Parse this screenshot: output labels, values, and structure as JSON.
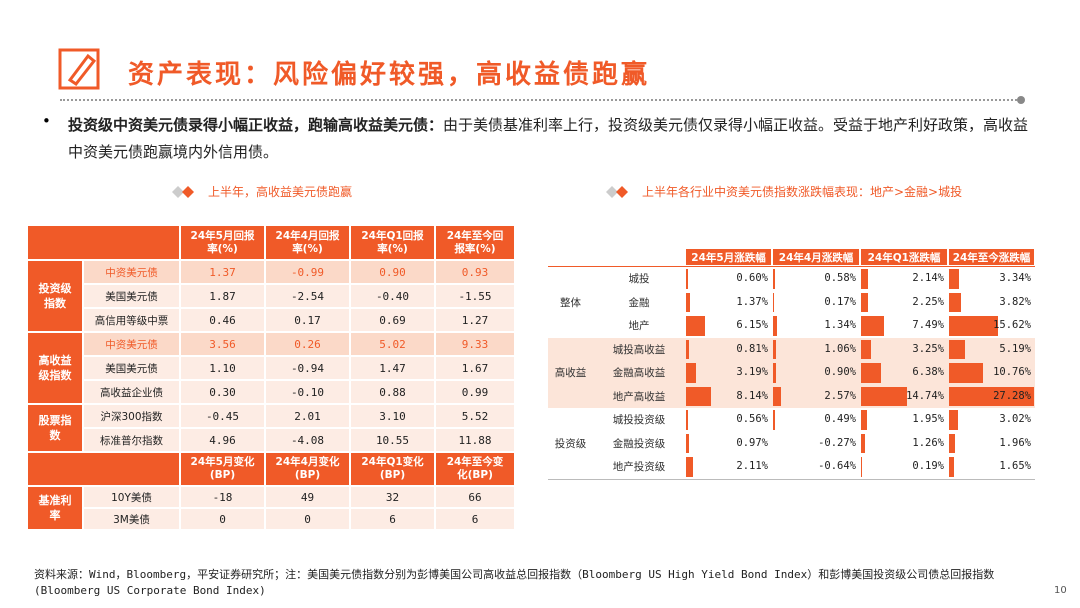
{
  "header": {
    "title": "资产表现：风险偏好较强，高收益债跑赢"
  },
  "bullet": {
    "bold": "投资级中资美元债录得小幅正收益，跑输高收益美元债：",
    "text": "由于美债基准利率上行，投资级美元债仅录得小幅正收益。受益于地产利好政策，高收益中资美元债跑赢境内外信用债。"
  },
  "left_table": {
    "title": "上半年，高收益美元债跑赢",
    "blocks": [
      {
        "columns": [
          "24年5月回报率(%)",
          "24年4月回报率(%)",
          "24年Q1回报率(%)",
          "24年至今回报率(%)"
        ],
        "groups": [
          {
            "name": "投资级指数",
            "rows": [
              {
                "name": "中资美元债",
                "cells": [
                  "1.37",
                  "-0.99",
                  "0.90",
                  "0.93"
                ]
              },
              {
                "name": "美国美元债",
                "cells": [
                  "1.87",
                  "-2.54",
                  "-0.40",
                  "-1.55"
                ]
              },
              {
                "name": "高信用等级中票",
                "cells": [
                  "0.46",
                  "0.17",
                  "0.69",
                  "1.27"
                ]
              }
            ]
          },
          {
            "name": "高收益级指数",
            "rows": [
              {
                "name": "中资美元债",
                "cells": [
                  "3.56",
                  "0.26",
                  "5.02",
                  "9.33"
                ]
              },
              {
                "name": "美国美元债",
                "cells": [
                  "1.10",
                  "-0.94",
                  "1.47",
                  "1.67"
                ]
              },
              {
                "name": "高收益企业债",
                "cells": [
                  "0.30",
                  "-0.10",
                  "0.88",
                  "0.99"
                ]
              }
            ]
          },
          {
            "name": "股票指数",
            "rows": [
              {
                "name": "沪深300指数",
                "cells": [
                  "-0.45",
                  "2.01",
                  "3.10",
                  "5.52"
                ]
              },
              {
                "name": "标准普尔指数",
                "cells": [
                  "4.96",
                  "-4.08",
                  "10.55",
                  "11.88"
                ]
              }
            ]
          }
        ]
      },
      {
        "columns": [
          "24年5月变化(BP)",
          "24年4月变化(BP)",
          "24年Q1变化(BP)",
          "24年至今变化(BP)"
        ],
        "groups": [
          {
            "name": "基准利率",
            "rows": [
              {
                "name": "10Y美债",
                "cells": [
                  "-18",
                  "49",
                  "32",
                  "66"
                ]
              },
              {
                "name": "3M美债",
                "cells": [
                  "0",
                  "0",
                  "6",
                  "6"
                ]
              }
            ]
          }
        ]
      }
    ]
  },
  "right_table": {
    "title": "上半年各行业中资美元债指数涨跌幅表现：地产>金融>城投",
    "columns": [
      "24年5月涨跌幅",
      "24年4月涨跌幅",
      "24年Q1涨跌幅",
      "24年至今涨跌幅"
    ],
    "groups": [
      {
        "name": "整体",
        "rows": [
          {
            "name": "城投",
            "values": [
              0.6,
              0.58,
              2.14,
              3.34
            ],
            "value_labels": [
              "0.60%",
              "0.58%",
              "2.14%",
              "3.34%"
            ]
          },
          {
            "name": "金融",
            "values": [
              1.37,
              0.17,
              2.25,
              3.82
            ],
            "value_labels": [
              "1.37%",
              "0.17%",
              "2.25%",
              "3.82%"
            ]
          },
          {
            "name": "地产",
            "values": [
              6.15,
              1.34,
              7.49,
              15.62
            ],
            "value_labels": [
              "6.15%",
              "1.34%",
              "7.49%",
              "15.62%"
            ]
          }
        ]
      },
      {
        "name": "高收益",
        "rows": [
          {
            "name": "城投高收益",
            "values": [
              0.81,
              1.06,
              3.25,
              5.19
            ],
            "value_labels": [
              "0.81%",
              "1.06%",
              "3.25%",
              "5.19%"
            ]
          },
          {
            "name": "金融高收益",
            "values": [
              3.19,
              0.9,
              6.38,
              10.76
            ],
            "value_labels": [
              "3.19%",
              "0.90%",
              "6.38%",
              "10.76%"
            ]
          },
          {
            "name": "地产高收益",
            "values": [
              8.14,
              2.57,
              14.74,
              27.28
            ],
            "value_labels": [
              "8.14%",
              "2.57%",
              "14.74%",
              "27.28%"
            ]
          }
        ]
      },
      {
        "name": "投资级",
        "rows": [
          {
            "name": "城投投资级",
            "values": [
              0.56,
              0.49,
              1.95,
              3.02
            ],
            "value_labels": [
              "0.56%",
              "0.49%",
              "1.95%",
              "3.02%"
            ]
          },
          {
            "name": "金融投资级",
            "values": [
              0.97,
              -0.27,
              1.26,
              1.96
            ],
            "value_labels": [
              "0.97%",
              "-0.27%",
              "1.26%",
              "1.96%"
            ]
          },
          {
            "name": "地产投资级",
            "values": [
              2.11,
              -0.64,
              0.19,
              1.65
            ],
            "value_labels": [
              "2.11%",
              "-0.64%",
              "0.19%",
              "1.65%"
            ]
          }
        ]
      }
    ]
  },
  "footer": {
    "source": "资料来源：Wind，Bloomberg，平安证券研究所；注：美国美元债指数分别为彭博美国公司高收益总回报指数（Bloomberg US High Yield Bond Index）和彭博美国投资级公司债总回报指数(Bloomberg US Corporate Bond Index)",
    "page": "10"
  }
}
